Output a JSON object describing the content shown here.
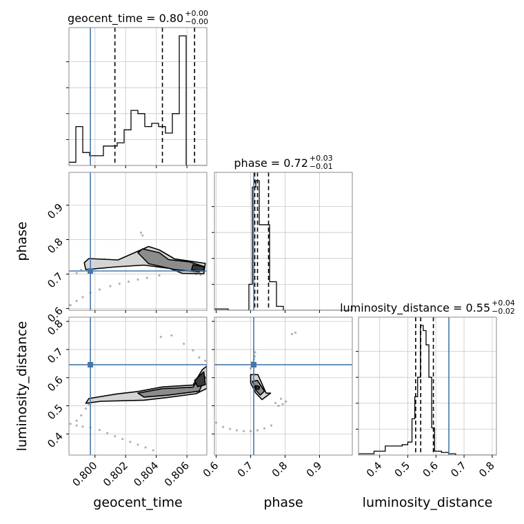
{
  "colors": {
    "truth": "#4477aa",
    "quantile": "#000000",
    "grid": "#c8c8c8",
    "spine": "#888888",
    "hist": "#000000",
    "contour_fill_dark": "#3a3a3a",
    "contour_fill_mid": "#8c8c8c",
    "contour_fill_light": "#d4d4d4",
    "scatter": "#555555"
  },
  "chart_data": {
    "type": "corner",
    "parameters": [
      "geocent_time",
      "phase",
      "luminosity_distance"
    ],
    "axis_labels": {
      "geocent_time": "geocent_time",
      "phase": "phase",
      "luminosity_distance": "luminosity_distance"
    },
    "ranges": {
      "geocent_time": [
        0.7983,
        0.8073
      ],
      "phase": [
        0.595,
        0.995
      ],
      "luminosity_distance": [
        0.325,
        0.815
      ]
    },
    "ticks": {
      "geocent_time": [
        0.8,
        0.802,
        0.804,
        0.806
      ],
      "geocent_time_labels": [
        "0.800",
        "0.802",
        "0.804",
        "0.806"
      ],
      "phase": [
        0.6,
        0.7,
        0.8,
        0.9
      ],
      "phase_labels": [
        "0.6",
        "0.7",
        "0.8",
        "0.9"
      ],
      "luminosity_distance": [
        0.4,
        0.5,
        0.6,
        0.7,
        0.8
      ],
      "luminosity_distance_labels": [
        "0.4",
        "0.5",
        "0.6",
        "0.7",
        "0.8"
      ]
    },
    "truths": {
      "geocent_time": 0.7997,
      "phase": 0.709,
      "luminosity_distance": 0.646
    },
    "titles": [
      {
        "param": "geocent_time",
        "main": "geocent_time = 0.80",
        "upper": "+0.00",
        "lower": "−0.00"
      },
      {
        "param": "phase",
        "main": "phase = 0.72",
        "upper": "+0.03",
        "lower": "−0.01"
      },
      {
        "param": "luminosity_distance",
        "main": "luminosity_distance = 0.55",
        "upper": "+0.04",
        "lower": "−0.02"
      }
    ],
    "histograms": {
      "geocent_time": {
        "edges": [
          0.7983,
          0.79875,
          0.7992,
          0.79965,
          0.8001,
          0.80055,
          0.801,
          0.80145,
          0.8019,
          0.80235,
          0.8028,
          0.80325,
          0.8037,
          0.80415,
          0.8046,
          0.80505,
          0.8055,
          0.80595,
          0.8064,
          0.80685,
          0.8073
        ],
        "counts": [
          1,
          12,
          4,
          3,
          3,
          6,
          6,
          7,
          11,
          17,
          16,
          12,
          13,
          12,
          10,
          16,
          40,
          0,
          0,
          0
        ],
        "quantiles": [
          0.8013,
          0.8044,
          0.8065
        ]
      },
      "phase": {
        "edges": [
          0.595,
          0.615,
          0.635,
          0.655,
          0.675,
          0.695,
          0.705,
          0.715,
          0.725,
          0.735,
          0.745,
          0.755,
          0.775,
          0.795,
          0.815,
          0.835,
          0.855,
          0.875,
          0.895,
          0.995
        ],
        "counts": [
          1,
          1,
          0,
          0,
          0,
          20,
          95,
          100,
          66,
          66,
          66,
          22,
          3,
          0,
          0,
          0,
          0,
          0,
          0
        ],
        "quantiles": [
          0.712,
          0.72,
          0.752
        ]
      },
      "luminosity_distance": {
        "edges": [
          0.325,
          0.38,
          0.42,
          0.45,
          0.48,
          0.5,
          0.515,
          0.525,
          0.535,
          0.545,
          0.555,
          0.565,
          0.575,
          0.585,
          0.595,
          0.62,
          0.645,
          0.67,
          0.7,
          0.73,
          0.815
        ],
        "counts": [
          1,
          3,
          7,
          7,
          8,
          10,
          28,
          45,
          60,
          100,
          96,
          85,
          60,
          21,
          3,
          2,
          1,
          0,
          0,
          0
        ],
        "quantiles": [
          0.528,
          0.546,
          0.591
        ]
      }
    },
    "contours": {
      "geocent_time|phase": {
        "outer": [
          [
            0.7993,
            0.733
          ],
          [
            0.7996,
            0.745
          ],
          [
            0.8015,
            0.741
          ],
          [
            0.8035,
            0.78
          ],
          [
            0.8042,
            0.77
          ],
          [
            0.8052,
            0.744
          ],
          [
            0.8072,
            0.731
          ],
          [
            0.8071,
            0.701
          ],
          [
            0.8057,
            0.702
          ],
          [
            0.8049,
            0.716
          ],
          [
            0.8032,
            0.726
          ],
          [
            0.8014,
            0.721
          ],
          [
            0.7994,
            0.713
          ]
        ],
        "inner": [
          [
            0.8031,
            0.773
          ],
          [
            0.8042,
            0.762
          ],
          [
            0.8048,
            0.742
          ],
          [
            0.8062,
            0.735
          ],
          [
            0.8071,
            0.722
          ],
          [
            0.8068,
            0.706
          ],
          [
            0.8052,
            0.713
          ],
          [
            0.8035,
            0.73
          ],
          [
            0.8028,
            0.762
          ]
        ],
        "core": [
          [
            0.8064,
            0.727
          ],
          [
            0.8071,
            0.722
          ],
          [
            0.8071,
            0.708
          ],
          [
            0.8063,
            0.712
          ]
        ]
      },
      "geocent_time|luminosity_distance": {
        "outer": [
          [
            0.7994,
            0.509
          ],
          [
            0.7996,
            0.526
          ],
          [
            0.8014,
            0.542
          ],
          [
            0.8028,
            0.551
          ],
          [
            0.8044,
            0.567
          ],
          [
            0.8064,
            0.574
          ],
          [
            0.807,
            0.628
          ],
          [
            0.8073,
            0.641
          ],
          [
            0.8073,
            0.562
          ],
          [
            0.8066,
            0.543
          ],
          [
            0.8048,
            0.53
          ],
          [
            0.8032,
            0.52
          ],
          [
            0.8004,
            0.516
          ]
        ],
        "inner": [
          [
            0.8028,
            0.545
          ],
          [
            0.8044,
            0.561
          ],
          [
            0.8064,
            0.566
          ],
          [
            0.807,
            0.616
          ],
          [
            0.8072,
            0.6
          ],
          [
            0.8068,
            0.552
          ],
          [
            0.8048,
            0.538
          ],
          [
            0.8032,
            0.531
          ]
        ],
        "core": [
          [
            0.8065,
            0.59
          ],
          [
            0.8071,
            0.621
          ],
          [
            0.8072,
            0.575
          ],
          [
            0.8067,
            0.568
          ]
        ]
      },
      "phase|luminosity_distance": {
        "outer": [
          [
            0.7,
            0.611
          ],
          [
            0.721,
            0.611
          ],
          [
            0.745,
            0.545
          ],
          [
            0.758,
            0.545
          ],
          [
            0.733,
            0.522
          ],
          [
            0.714,
            0.547
          ],
          [
            0.7,
            0.582
          ]
        ],
        "inner": [
          [
            0.705,
            0.587
          ],
          [
            0.72,
            0.59
          ],
          [
            0.74,
            0.552
          ],
          [
            0.728,
            0.538
          ],
          [
            0.715,
            0.556
          ]
        ],
        "core": [
          [
            0.714,
            0.572
          ],
          [
            0.726,
            0.568
          ],
          [
            0.724,
            0.558
          ],
          [
            0.716,
            0.56
          ]
        ]
      }
    },
    "scatter": {
      "geocent_time|phase": [
        [
          0.7984,
          0.61
        ],
        [
          0.7988,
          0.622
        ],
        [
          0.7992,
          0.633
        ],
        [
          0.7997,
          0.646
        ],
        [
          0.8003,
          0.655
        ],
        [
          0.801,
          0.665
        ],
        [
          0.8016,
          0.672
        ],
        [
          0.8022,
          0.678
        ],
        [
          0.8028,
          0.684
        ],
        [
          0.8034,
          0.689
        ],
        [
          0.8042,
          0.696
        ],
        [
          0.7988,
          0.703
        ],
        [
          0.7991,
          0.712
        ],
        [
          0.7994,
          0.722
        ],
        [
          0.7997,
          0.735
        ],
        [
          0.8002,
          0.742
        ],
        [
          0.8006,
          0.743
        ],
        [
          0.801,
          0.739
        ],
        [
          0.803,
          0.82
        ],
        [
          0.8031,
          0.812
        ],
        [
          0.8066,
          0.7
        ],
        [
          0.8069,
          0.698
        ]
      ],
      "geocent_time|luminosity_distance": [
        [
          0.7984,
          0.436
        ],
        [
          0.7988,
          0.43
        ],
        [
          0.7992,
          0.426
        ],
        [
          0.7997,
          0.423
        ],
        [
          0.8003,
          0.414
        ],
        [
          0.8008,
          0.403
        ],
        [
          0.8013,
          0.392
        ],
        [
          0.8018,
          0.382
        ],
        [
          0.8023,
          0.372
        ],
        [
          0.8028,
          0.362
        ],
        [
          0.8033,
          0.352
        ],
        [
          0.8038,
          0.342
        ],
        [
          0.7988,
          0.447
        ],
        [
          0.7991,
          0.466
        ],
        [
          0.7994,
          0.49
        ],
        [
          0.7996,
          0.505
        ],
        [
          0.8043,
          0.745
        ],
        [
          0.805,
          0.75
        ],
        [
          0.8058,
          0.72
        ],
        [
          0.8064,
          0.697
        ],
        [
          0.8068,
          0.672
        ],
        [
          0.8072,
          0.66
        ]
      ],
      "phase|luminosity_distance": [
        [
          0.6,
          0.44
        ],
        [
          0.62,
          0.425
        ],
        [
          0.64,
          0.418
        ],
        [
          0.66,
          0.413
        ],
        [
          0.68,
          0.41
        ],
        [
          0.7,
          0.41
        ],
        [
          0.72,
          0.413
        ],
        [
          0.74,
          0.42
        ],
        [
          0.76,
          0.43
        ],
        [
          0.7,
          0.633
        ],
        [
          0.705,
          0.655
        ],
        [
          0.71,
          0.666
        ],
        [
          0.712,
          0.676
        ],
        [
          0.713,
          0.69
        ],
        [
          0.772,
          0.51
        ],
        [
          0.781,
          0.5
        ],
        [
          0.793,
          0.506
        ],
        [
          0.802,
          0.515
        ],
        [
          0.788,
          0.525
        ],
        [
          0.82,
          0.755
        ],
        [
          0.83,
          0.76
        ]
      ]
    }
  }
}
